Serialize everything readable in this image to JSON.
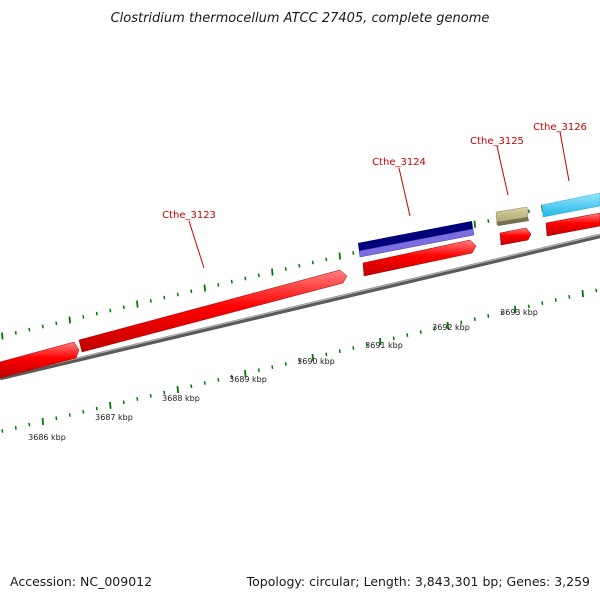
{
  "title": "Clostridium thermocellum ATCC 27405, complete genome",
  "footer": {
    "accession": "Accession: NC_009012",
    "info": "Topology: circular; Length: 3,843,301 bp; Genes: 3,259"
  },
  "colors": {
    "cds": "#ff0000",
    "feature_navy": "#00007a",
    "feature_blue": "#7a6ee0",
    "feature_khaki": "#b8b07a",
    "feature_cyan": "#22c4f0",
    "backbone": "#888888",
    "ticks": "#007a00",
    "label": "#cc0000"
  },
  "gene_labels": [
    "Cthe_3123",
    "Cthe_3124",
    "Cthe_3125",
    "Cthe_3126"
  ],
  "scale_labels": [
    "3686 kbp",
    "3687 kbp",
    "3688 kbp",
    "3689 kbp",
    "3690 kbp",
    "3691 kbp",
    "3692 kbp",
    "3693 kbp"
  ]
}
